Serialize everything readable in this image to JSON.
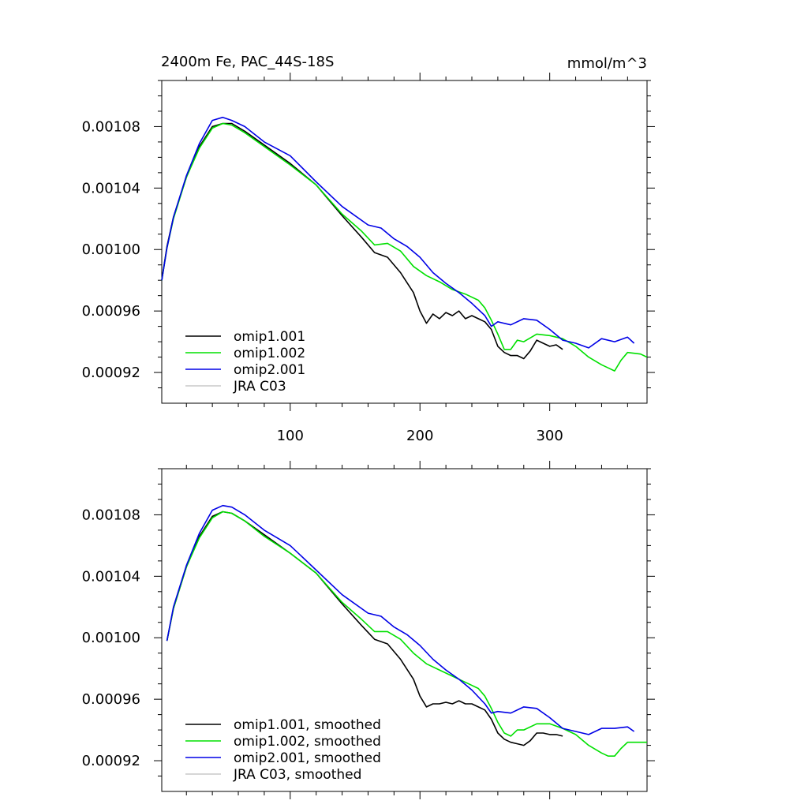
{
  "chart_data": [
    {
      "type": "line",
      "title_left": "2400m Fe, PAC_44S-18S",
      "title_right": "mmol/m^3",
      "xlim": [
        1,
        375
      ],
      "ylim": [
        0.0009,
        0.00111
      ],
      "x_ticks": [
        100,
        200,
        300
      ],
      "x_tick_labels": [
        "100",
        "200",
        "300"
      ],
      "y_ticks": [
        0.00092,
        0.00096,
        0.001,
        0.00104,
        0.00108
      ],
      "y_tick_labels": [
        "0.00092",
        "0.00096",
        "0.00100",
        "0.00104",
        "0.00108"
      ],
      "legend_position": "bottom-left",
      "series": [
        {
          "name": "omip1.001",
          "color": "#000000",
          "x": [
            1,
            5,
            10,
            20,
            30,
            40,
            48,
            55,
            65,
            80,
            100,
            120,
            140,
            155,
            165,
            175,
            185,
            195,
            200,
            205,
            210,
            215,
            220,
            225,
            230,
            235,
            240,
            245,
            250,
            255,
            260,
            265,
            270,
            275,
            280,
            285,
            290,
            295,
            300,
            305,
            310
          ],
          "y": [
            0.00098,
            0.001002,
            0.001021,
            0.001047,
            0.001067,
            0.00108,
            0.001082,
            0.001082,
            0.001077,
            0.001068,
            0.001056,
            0.001042,
            0.001022,
            0.001008,
            0.000998,
            0.000995,
            0.000985,
            0.000972,
            0.00096,
            0.000952,
            0.000958,
            0.000955,
            0.000959,
            0.000957,
            0.00096,
            0.000955,
            0.000957,
            0.000955,
            0.000953,
            0.000948,
            0.000937,
            0.000933,
            0.000931,
            0.000931,
            0.000929,
            0.000934,
            0.000941,
            0.000939,
            0.000937,
            0.000938,
            0.000935
          ]
        },
        {
          "name": "omip1.002",
          "color": "#00e000",
          "x": [
            1,
            5,
            10,
            20,
            30,
            40,
            48,
            55,
            65,
            80,
            100,
            120,
            140,
            155,
            165,
            175,
            185,
            195,
            205,
            215,
            225,
            235,
            245,
            250,
            255,
            260,
            265,
            270,
            275,
            280,
            290,
            300,
            310,
            320,
            330,
            340,
            345,
            350,
            355,
            360,
            370,
            375
          ],
          "y": [
            0.00098,
            0.001001,
            0.00102,
            0.001047,
            0.001066,
            0.001079,
            0.001082,
            0.001081,
            0.001076,
            0.001067,
            0.001055,
            0.001042,
            0.001023,
            0.001012,
            0.001003,
            0.001004,
            0.000999,
            0.000989,
            0.000983,
            0.000979,
            0.000974,
            0.000971,
            0.000967,
            0.000962,
            0.000954,
            0.000945,
            0.000935,
            0.000935,
            0.000941,
            0.00094,
            0.000945,
            0.000944,
            0.000942,
            0.000937,
            0.00093,
            0.000925,
            0.000923,
            0.000921,
            0.000928,
            0.000933,
            0.000932,
            0.00093
          ]
        },
        {
          "name": "omip2.001",
          "color": "#0000e6",
          "x": [
            1,
            5,
            10,
            20,
            30,
            40,
            48,
            55,
            65,
            80,
            100,
            120,
            140,
            160,
            170,
            180,
            190,
            200,
            210,
            220,
            230,
            240,
            250,
            255,
            260,
            270,
            280,
            290,
            300,
            310,
            320,
            330,
            340,
            350,
            360,
            365
          ],
          "y": [
            0.00098,
            0.001001,
            0.001021,
            0.001048,
            0.001069,
            0.001084,
            0.001086,
            0.001084,
            0.00108,
            0.00107,
            0.001061,
            0.001044,
            0.001028,
            0.001016,
            0.001014,
            0.001007,
            0.001002,
            0.000995,
            0.000985,
            0.000978,
            0.000972,
            0.000965,
            0.000957,
            0.00095,
            0.000953,
            0.000951,
            0.000955,
            0.000954,
            0.000948,
            0.000941,
            0.000939,
            0.000936,
            0.000942,
            0.00094,
            0.000943,
            0.000939
          ]
        },
        {
          "name": "JRA C03",
          "color": "#c8c8c8",
          "x": [],
          "y": []
        }
      ]
    },
    {
      "type": "line",
      "title_left": "",
      "title_right": "",
      "xlim": [
        1,
        375
      ],
      "ylim": [
        0.0009,
        0.00111
      ],
      "x_ticks": [
        100,
        200,
        300
      ],
      "x_tick_labels": [
        "",
        "",
        ""
      ],
      "y_ticks": [
        0.00092,
        0.00096,
        0.001,
        0.00104,
        0.00108
      ],
      "y_tick_labels": [
        "0.00092",
        "0.00096",
        "0.00100",
        "0.00104",
        "0.00108"
      ],
      "legend_position": "bottom-left",
      "series": [
        {
          "name": "omip1.001, smoothed",
          "color": "#000000",
          "x": [
            5,
            10,
            20,
            30,
            40,
            48,
            55,
            65,
            80,
            100,
            120,
            140,
            155,
            165,
            175,
            185,
            195,
            200,
            205,
            210,
            215,
            220,
            225,
            230,
            235,
            240,
            245,
            250,
            255,
            260,
            265,
            270,
            275,
            280,
            285,
            290,
            295,
            300,
            305,
            310
          ],
          "y": [
            0.000998,
            0.001019,
            0.001046,
            0.001066,
            0.001079,
            0.001082,
            0.001081,
            0.001076,
            0.001067,
            0.001055,
            0.001042,
            0.001022,
            0.001008,
            0.000999,
            0.000996,
            0.000986,
            0.000973,
            0.000962,
            0.000955,
            0.000957,
            0.000957,
            0.000958,
            0.000957,
            0.000959,
            0.000957,
            0.000957,
            0.000955,
            0.000953,
            0.000947,
            0.000938,
            0.000934,
            0.000932,
            0.000931,
            0.00093,
            0.000933,
            0.000938,
            0.000938,
            0.000937,
            0.000937,
            0.000936
          ]
        },
        {
          "name": "omip1.002, smoothed",
          "color": "#00e000",
          "x": [
            5,
            10,
            20,
            30,
            40,
            48,
            55,
            65,
            80,
            100,
            120,
            140,
            155,
            165,
            175,
            185,
            195,
            205,
            215,
            225,
            235,
            245,
            250,
            255,
            260,
            265,
            270,
            275,
            280,
            290,
            300,
            310,
            320,
            330,
            340,
            345,
            350,
            355,
            360,
            370,
            375
          ],
          "y": [
            0.000998,
            0.001019,
            0.001046,
            0.001065,
            0.001078,
            0.001082,
            0.001081,
            0.001076,
            0.001066,
            0.001055,
            0.001042,
            0.001023,
            0.001012,
            0.001004,
            0.001004,
            0.000999,
            0.00099,
            0.000983,
            0.000979,
            0.000975,
            0.000971,
            0.000967,
            0.000962,
            0.000954,
            0.000945,
            0.000938,
            0.000936,
            0.00094,
            0.00094,
            0.000944,
            0.000944,
            0.000941,
            0.000937,
            0.00093,
            0.000925,
            0.000923,
            0.000923,
            0.000928,
            0.000932,
            0.000932,
            0.000932
          ]
        },
        {
          "name": "omip2.001, smoothed",
          "color": "#0000e6",
          "x": [
            5,
            10,
            20,
            30,
            40,
            48,
            55,
            65,
            80,
            100,
            120,
            140,
            160,
            170,
            180,
            190,
            200,
            210,
            220,
            230,
            240,
            250,
            255,
            260,
            270,
            280,
            290,
            300,
            310,
            320,
            330,
            340,
            350,
            360,
            365
          ],
          "y": [
            0.000998,
            0.00102,
            0.001047,
            0.001068,
            0.001083,
            0.001086,
            0.001085,
            0.00108,
            0.00107,
            0.00106,
            0.001044,
            0.001028,
            0.001016,
            0.001014,
            0.001007,
            0.001002,
            0.000995,
            0.000986,
            0.000979,
            0.000973,
            0.000966,
            0.000957,
            0.000951,
            0.000952,
            0.000951,
            0.000955,
            0.000954,
            0.000948,
            0.000941,
            0.000939,
            0.000937,
            0.000941,
            0.000941,
            0.000942,
            0.000939
          ]
        },
        {
          "name": "JRA C03, smoothed",
          "color": "#c8c8c8",
          "x": [],
          "y": []
        }
      ]
    }
  ]
}
